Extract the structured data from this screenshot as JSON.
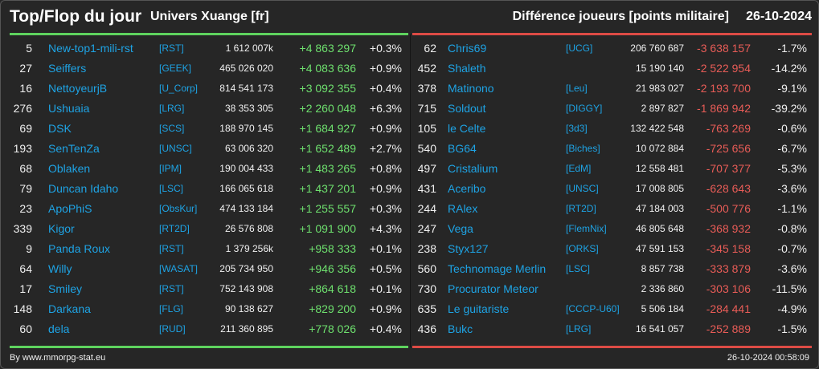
{
  "header": {
    "title": "Top/Flop du jour",
    "universe": "Univers Xuange [fr]",
    "subtitle": "Différence joueurs [points militaire]",
    "date": "26-10-2024"
  },
  "colors": {
    "top_accent": "#5ed35e",
    "flop_accent": "#dd4b45",
    "link": "#1ea3e4"
  },
  "top": [
    {
      "rank": "5",
      "name": "New-top1-mili-rst",
      "ally": "[RST]",
      "points": "1 612 007k",
      "diff": "+4 863 297",
      "pct": "+0.3%"
    },
    {
      "rank": "27",
      "name": "Seiffers",
      "ally": "[GEEK]",
      "points": "465 026 020",
      "diff": "+4 083 636",
      "pct": "+0.9%"
    },
    {
      "rank": "16",
      "name": "NettoyeurjB",
      "ally": "[U_Corp]",
      "points": "814 541 173",
      "diff": "+3 092 355",
      "pct": "+0.4%"
    },
    {
      "rank": "276",
      "name": "Ushuaia",
      "ally": "[LRG]",
      "points": "38 353 305",
      "diff": "+2 260 048",
      "pct": "+6.3%"
    },
    {
      "rank": "69",
      "name": "DSK",
      "ally": "[SCS]",
      "points": "188 970 145",
      "diff": "+1 684 927",
      "pct": "+0.9%"
    },
    {
      "rank": "193",
      "name": "SenTenZa",
      "ally": "[UNSC]",
      "points": "63 006 320",
      "diff": "+1 652 489",
      "pct": "+2.7%"
    },
    {
      "rank": "68",
      "name": "Oblaken",
      "ally": "[IPM]",
      "points": "190 004 433",
      "diff": "+1 483 265",
      "pct": "+0.8%"
    },
    {
      "rank": "79",
      "name": "Duncan Idaho",
      "ally": "[LSC]",
      "points": "166 065 618",
      "diff": "+1 437 201",
      "pct": "+0.9%"
    },
    {
      "rank": "23",
      "name": "ApoPhiS",
      "ally": "[ObsKur]",
      "points": "474 133 184",
      "diff": "+1 255 557",
      "pct": "+0.3%"
    },
    {
      "rank": "339",
      "name": "Kigor",
      "ally": "[RT2D]",
      "points": "26 576 808",
      "diff": "+1 091 900",
      "pct": "+4.3%"
    },
    {
      "rank": "9",
      "name": "Panda Roux",
      "ally": "[RST]",
      "points": "1 379 256k",
      "diff": "+958 333",
      "pct": "+0.1%"
    },
    {
      "rank": "64",
      "name": "Willy",
      "ally": "[WASAT]",
      "points": "205 734 950",
      "diff": "+946 356",
      "pct": "+0.5%"
    },
    {
      "rank": "17",
      "name": "Smiley",
      "ally": "[RST]",
      "points": "752 143 908",
      "diff": "+864 618",
      "pct": "+0.1%"
    },
    {
      "rank": "148",
      "name": "Darkana",
      "ally": "[FLG]",
      "points": "90 138 627",
      "diff": "+829 200",
      "pct": "+0.9%"
    },
    {
      "rank": "60",
      "name": "dela",
      "ally": "[RUD]",
      "points": "211 360 895",
      "diff": "+778 026",
      "pct": "+0.4%"
    }
  ],
  "flop": [
    {
      "rank": "62",
      "name": "Chris69",
      "ally": "[UCG]",
      "points": "206 760 687",
      "diff": "-3 638 157",
      "pct": "-1.7%"
    },
    {
      "rank": "452",
      "name": "Shaleth",
      "ally": "",
      "points": "15 190 140",
      "diff": "-2 522 954",
      "pct": "-14.2%"
    },
    {
      "rank": "378",
      "name": "Matinono",
      "ally": "[Leu]",
      "points": "21 983 027",
      "diff": "-2 193 700",
      "pct": "-9.1%"
    },
    {
      "rank": "715",
      "name": "Soldout",
      "ally": "[DIGGY]",
      "points": "2 897 827",
      "diff": "-1 869 942",
      "pct": "-39.2%"
    },
    {
      "rank": "105",
      "name": "le Celte",
      "ally": "[3d3]",
      "points": "132 422 548",
      "diff": "-763 269",
      "pct": "-0.6%"
    },
    {
      "rank": "540",
      "name": "BG64",
      "ally": "[Biches]",
      "points": "10 072 884",
      "diff": "-725 656",
      "pct": "-6.7%"
    },
    {
      "rank": "497",
      "name": "Cristalium",
      "ally": "[EdM]",
      "points": "12 558 481",
      "diff": "-707 377",
      "pct": "-5.3%"
    },
    {
      "rank": "431",
      "name": "Aceribo",
      "ally": "[UNSC]",
      "points": "17 008 805",
      "diff": "-628 643",
      "pct": "-3.6%"
    },
    {
      "rank": "244",
      "name": "RAlex",
      "ally": "[RT2D]",
      "points": "47 184 003",
      "diff": "-500 776",
      "pct": "-1.1%"
    },
    {
      "rank": "247",
      "name": "Vega",
      "ally": "[FlemNix]",
      "points": "46 805 648",
      "diff": "-368 932",
      "pct": "-0.8%"
    },
    {
      "rank": "238",
      "name": "Styx127",
      "ally": "[ORKS]",
      "points": "47 591 153",
      "diff": "-345 158",
      "pct": "-0.7%"
    },
    {
      "rank": "560",
      "name": "Technomage Merlin",
      "ally": "[LSC]",
      "points": "8 857 738",
      "diff": "-333 879",
      "pct": "-3.6%"
    },
    {
      "rank": "730",
      "name": "Procurator Meteor",
      "ally": "",
      "points": "2 336 860",
      "diff": "-303 106",
      "pct": "-11.5%"
    },
    {
      "rank": "635",
      "name": "Le guitariste",
      "ally": "[CCCP-U60]",
      "points": "5 506 184",
      "diff": "-284 441",
      "pct": "-4.9%"
    },
    {
      "rank": "436",
      "name": "Bukc",
      "ally": "[LRG]",
      "points": "16 541 057",
      "diff": "-252 889",
      "pct": "-1.5%"
    }
  ],
  "footer": {
    "credit": "By www.mmorpg-stat.eu",
    "timestamp": "26-10-2024 00:58:09"
  }
}
